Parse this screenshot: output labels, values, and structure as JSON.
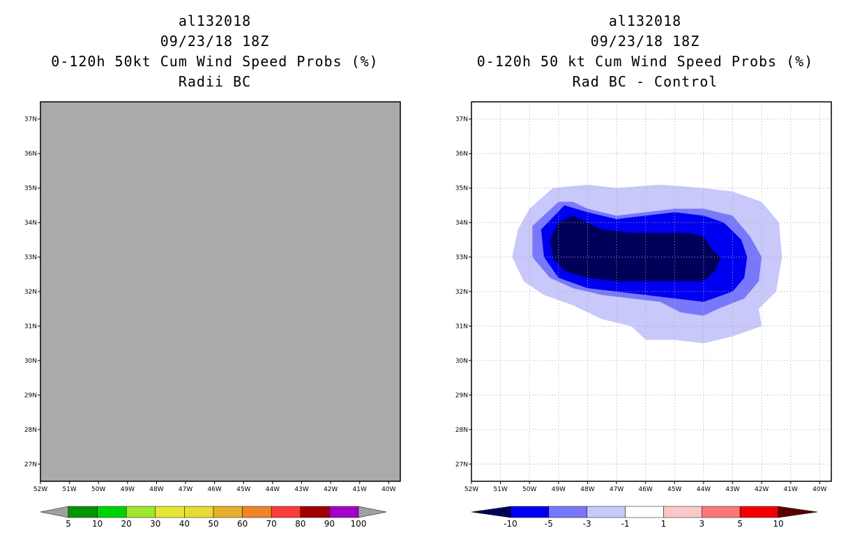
{
  "chart_data": [
    {
      "type": "heatmap",
      "title_lines": [
        "al132018",
        "09/23/18 18Z",
        "0-120h 50kt Cum Wind Speed Probs (%)",
        "Radii BC"
      ],
      "x_ticks": [
        "52W",
        "51W",
        "50W",
        "49W",
        "48W",
        "47W",
        "46W",
        "45W",
        "44W",
        "43W",
        "42W",
        "41W",
        "40W"
      ],
      "y_ticks": [
        "27N",
        "28N",
        "29N",
        "30N",
        "31N",
        "32N",
        "33N",
        "34N",
        "35N",
        "36N",
        "37N"
      ],
      "xlim": [
        -52,
        -39.6
      ],
      "ylim": [
        26.5,
        37.5
      ],
      "field": "no data (entire domain shaded gray)",
      "gridlines": false,
      "colorbar": {
        "labels": [
          "5",
          "10",
          "20",
          "30",
          "40",
          "50",
          "60",
          "70",
          "80",
          "90",
          "100"
        ],
        "colors": [
          "#009600",
          "#00d200",
          "#a0e632",
          "#e6e632",
          "#e6dc32",
          "#e6af2d",
          "#f08228",
          "#fa3c3c",
          "#a00000",
          "#a000c8"
        ],
        "ends": [
          "#a0a0a0",
          "#a0a0a0"
        ]
      }
    },
    {
      "type": "heatmap",
      "title_lines": [
        "al132018",
        "09/23/18 18Z",
        "0-120h 50 kt Cum Wind Speed Probs (%)",
        "Rad BC - Control"
      ],
      "x_ticks": [
        "52W",
        "51W",
        "50W",
        "49W",
        "48W",
        "47W",
        "46W",
        "45W",
        "44W",
        "43W",
        "42W",
        "41W",
        "40W"
      ],
      "y_ticks": [
        "27N",
        "28N",
        "29N",
        "30N",
        "31N",
        "32N",
        "33N",
        "34N",
        "35N",
        "36N",
        "37N"
      ],
      "xlim": [
        -52,
        -39.6
      ],
      "ylim": [
        26.5,
        37.5
      ],
      "gridlines": true,
      "contours": [
        {
          "level": "-1 to -3",
          "color": "#c8c8fa",
          "points": [
            [
              -49.2,
              35.0
            ],
            [
              -48.0,
              35.1
            ],
            [
              -47.0,
              35.0
            ],
            [
              -45.5,
              35.1
            ],
            [
              -44.0,
              35.0
            ],
            [
              -43.0,
              34.9
            ],
            [
              -42.0,
              34.6
            ],
            [
              -41.4,
              34.0
            ],
            [
              -41.3,
              33.0
            ],
            [
              -41.5,
              32.0
            ],
            [
              -42.1,
              31.5
            ],
            [
              -42.0,
              31.0
            ],
            [
              -43.0,
              30.7
            ],
            [
              -44.0,
              30.5
            ],
            [
              -45.0,
              30.6
            ],
            [
              -46.0,
              30.6
            ],
            [
              -46.5,
              31.0
            ],
            [
              -47.5,
              31.2
            ],
            [
              -48.5,
              31.6
            ],
            [
              -49.5,
              31.9
            ],
            [
              -50.2,
              32.3
            ],
            [
              -50.6,
              33.0
            ],
            [
              -50.4,
              33.8
            ],
            [
              -50.0,
              34.4
            ]
          ]
        },
        {
          "level": "-3 to -5",
          "color": "#7878fa",
          "points": [
            [
              -49.0,
              34.6
            ],
            [
              -48.5,
              34.6
            ],
            [
              -48.0,
              34.4
            ],
            [
              -47.0,
              34.2
            ],
            [
              -46.0,
              34.3
            ],
            [
              -45.0,
              34.4
            ],
            [
              -44.0,
              34.4
            ],
            [
              -43.0,
              34.2
            ],
            [
              -42.4,
              33.6
            ],
            [
              -42.0,
              33.0
            ],
            [
              -42.1,
              32.3
            ],
            [
              -42.6,
              31.8
            ],
            [
              -43.5,
              31.5
            ],
            [
              -44.0,
              31.3
            ],
            [
              -44.8,
              31.4
            ],
            [
              -45.5,
              31.7
            ],
            [
              -46.5,
              31.8
            ],
            [
              -47.5,
              31.9
            ],
            [
              -48.5,
              32.1
            ],
            [
              -49.3,
              32.4
            ],
            [
              -49.9,
              33.0
            ],
            [
              -49.9,
              33.9
            ]
          ]
        },
        {
          "level": "-5 to -10",
          "color": "#0000f0",
          "points": [
            [
              -48.8,
              34.5
            ],
            [
              -48.0,
              34.3
            ],
            [
              -47.0,
              34.1
            ],
            [
              -46.0,
              34.2
            ],
            [
              -45.0,
              34.3
            ],
            [
              -44.0,
              34.2
            ],
            [
              -43.3,
              34.0
            ],
            [
              -42.7,
              33.5
            ],
            [
              -42.5,
              33.0
            ],
            [
              -42.6,
              32.4
            ],
            [
              -43.0,
              32.0
            ],
            [
              -44.0,
              31.7
            ],
            [
              -45.0,
              31.8
            ],
            [
              -46.0,
              31.9
            ],
            [
              -47.0,
              32.0
            ],
            [
              -48.0,
              32.1
            ],
            [
              -49.0,
              32.4
            ],
            [
              -49.5,
              33.0
            ],
            [
              -49.6,
              33.8
            ]
          ]
        },
        {
          "level": "< -10",
          "color": "#00005a",
          "points": [
            [
              -48.5,
              34.2
            ],
            [
              -47.5,
              33.8
            ],
            [
              -46.5,
              33.7
            ],
            [
              -45.0,
              33.7
            ],
            [
              -44.5,
              33.7
            ],
            [
              -44.0,
              33.6
            ],
            [
              -43.7,
              33.2
            ],
            [
              -43.4,
              33.0
            ],
            [
              -43.6,
              32.6
            ],
            [
              -44.0,
              32.3
            ],
            [
              -45.0,
              32.3
            ],
            [
              -46.0,
              32.3
            ],
            [
              -47.0,
              32.3
            ],
            [
              -48.0,
              32.4
            ],
            [
              -48.8,
              32.6
            ],
            [
              -49.2,
              33.0
            ],
            [
              -49.3,
              33.5
            ],
            [
              -49.0,
              34.0
            ]
          ]
        }
      ],
      "colorbar": {
        "labels": [
          "-10",
          "-5",
          "-3",
          "-1",
          "1",
          "3",
          "5",
          "10"
        ],
        "colors": [
          "#0000f0",
          "#7878fa",
          "#c8c8fa",
          "#ffffff",
          "#fac8c8",
          "#fa7878",
          "#f00000"
        ],
        "ends": [
          "#00005a",
          "#5a0000"
        ]
      }
    }
  ]
}
